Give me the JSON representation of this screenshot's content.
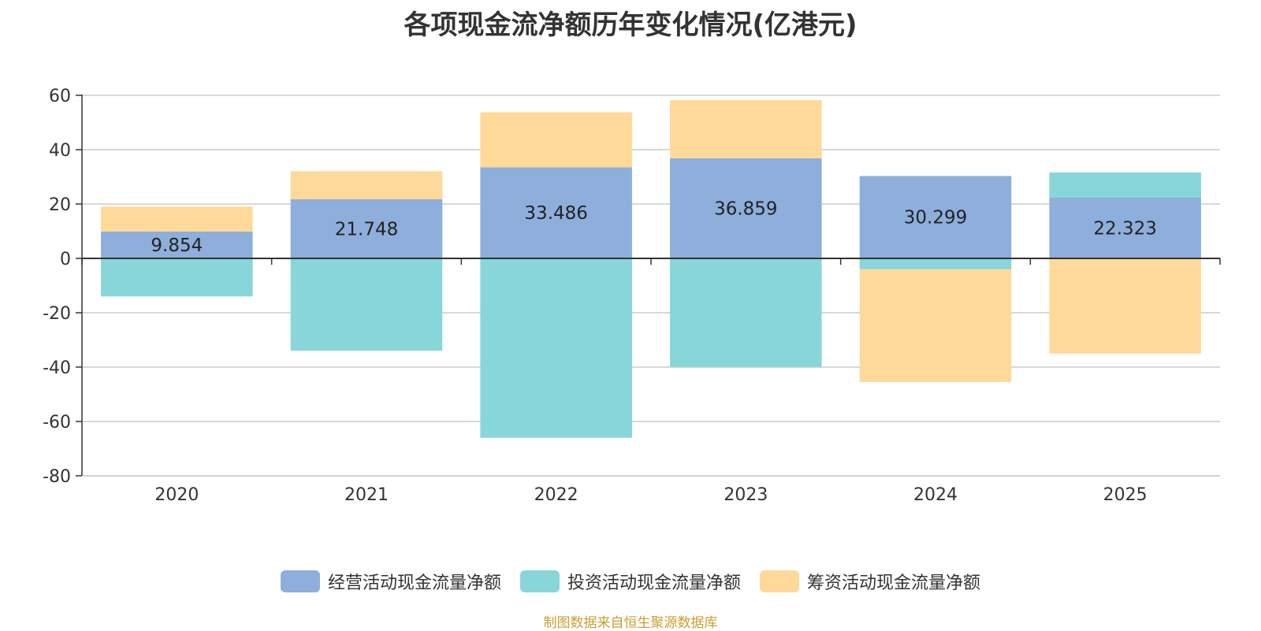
{
  "title": "各项现金流净额历年变化情况(亿港元)",
  "source": "制图数据来自恒生聚源数据库",
  "chart_data": {
    "type": "bar",
    "stacked": true,
    "categories": [
      "2020",
      "2021",
      "2022",
      "2023",
      "2024",
      "2025"
    ],
    "ylim": [
      -80,
      60
    ],
    "yticks": [
      60,
      40,
      20,
      0,
      -20,
      -40,
      -60,
      -80
    ],
    "grid": true,
    "legend_position": "bottom",
    "series": [
      {
        "name": "经营活动现金流量净额",
        "color": "#8eaedb",
        "values": [
          9.854,
          21.748,
          33.486,
          36.859,
          30.299,
          22.323
        ],
        "show_labels": true
      },
      {
        "name": "投资活动现金流量净额",
        "color": "#88d6d9",
        "values": [
          -14.0,
          -34.0,
          -66.0,
          -40.0,
          -4.0,
          9.3
        ],
        "show_labels": false
      },
      {
        "name": "筹资活动现金流量净额",
        "color": "#ffd999",
        "values": [
          9.2,
          10.3,
          20.3,
          21.4,
          -41.5,
          -35.0
        ],
        "show_labels": false
      }
    ]
  }
}
